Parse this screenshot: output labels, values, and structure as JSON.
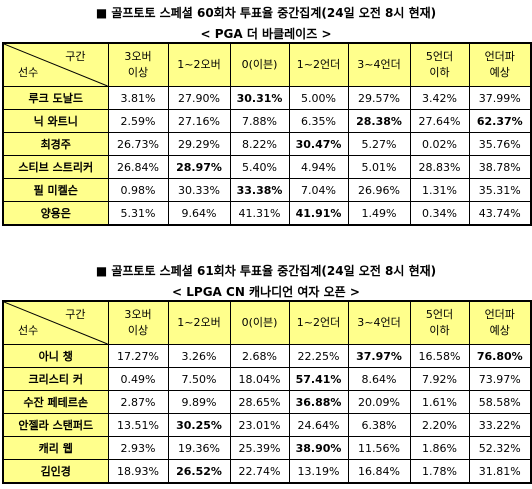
{
  "sections": [
    {
      "title": "■ 골프토토 스페셜 60회차 투표율 중간집계(24일 오전 8시 현재)",
      "subtitle": "< PGA 더 바클레이즈 >",
      "table": {
        "corner": {
          "top": "구간",
          "bottom": "선수"
        },
        "columns": [
          "3오버\n이상",
          "1~2오버",
          "0(이븐)",
          "1~2언더",
          "3~4언더",
          "5언더\n이하",
          "언더파\n예상"
        ],
        "rows": [
          {
            "player": "루크 도날드",
            "cells": [
              "3.81%",
              "27.90%",
              "30.31%",
              "5.00%",
              "29.57%",
              "3.42%",
              "37.99%"
            ]
          },
          {
            "player": "닉 와트니",
            "cells": [
              "2.59%",
              "27.16%",
              "7.88%",
              "6.35%",
              "28.38%",
              "27.64%",
              "62.37%"
            ]
          },
          {
            "player": "최경주",
            "cells": [
              "26.73%",
              "29.29%",
              "8.22%",
              "30.47%",
              "5.27%",
              "0.02%",
              "35.76%"
            ]
          },
          {
            "player": "스티브 스트리커",
            "cells": [
              "26.84%",
              "28.97%",
              "5.40%",
              "4.94%",
              "5.01%",
              "28.83%",
              "38.78%"
            ]
          },
          {
            "player": "필 미켈슨",
            "cells": [
              "0.98%",
              "30.33%",
              "33.38%",
              "7.04%",
              "26.96%",
              "1.31%",
              "35.31%"
            ]
          },
          {
            "player": "양용은",
            "cells": [
              "5.31%",
              "9.64%",
              "41.31%",
              "41.91%",
              "1.49%",
              "0.34%",
              "43.74%"
            ]
          }
        ]
      }
    },
    {
      "title": "■ 골프토토 스페셜 61회차 투표율 중간집계(24일 오전 8시 현재)",
      "subtitle": "< LPGA CN 캐나디언 여자 오픈 >",
      "table": {
        "corner": {
          "top": "구간",
          "bottom": "선수"
        },
        "columns": [
          "3오버\n이상",
          "1~2오버",
          "0(이븐)",
          "1~2언더",
          "3~4언더",
          "5언더\n이하",
          "언더파\n예상"
        ],
        "rows": [
          {
            "player": "아니 챙",
            "cells": [
              "17.27%",
              "3.26%",
              "2.68%",
              "22.25%",
              "37.97%",
              "16.58%",
              "76.80%"
            ]
          },
          {
            "player": "크리스티 커",
            "cells": [
              "0.49%",
              "7.50%",
              "18.04%",
              "57.41%",
              "8.64%",
              "7.92%",
              "73.97%"
            ]
          },
          {
            "player": "수잔 페테르손",
            "cells": [
              "2.87%",
              "9.89%",
              "28.65%",
              "36.88%",
              "20.09%",
              "1.61%",
              "58.58%"
            ]
          },
          {
            "player": "안젤라 스탠퍼드",
            "cells": [
              "13.51%",
              "30.25%",
              "23.01%",
              "24.64%",
              "6.38%",
              "2.20%",
              "33.22%"
            ]
          },
          {
            "player": "캐리 웹",
            "cells": [
              "2.93%",
              "19.36%",
              "25.39%",
              "38.90%",
              "11.56%",
              "1.86%",
              "52.32%"
            ]
          },
          {
            "player": "김인경",
            "cells": [
              "18.93%",
              "26.52%",
              "22.74%",
              "13.19%",
              "16.84%",
              "1.78%",
              "31.81%"
            ]
          }
        ]
      }
    }
  ]
}
